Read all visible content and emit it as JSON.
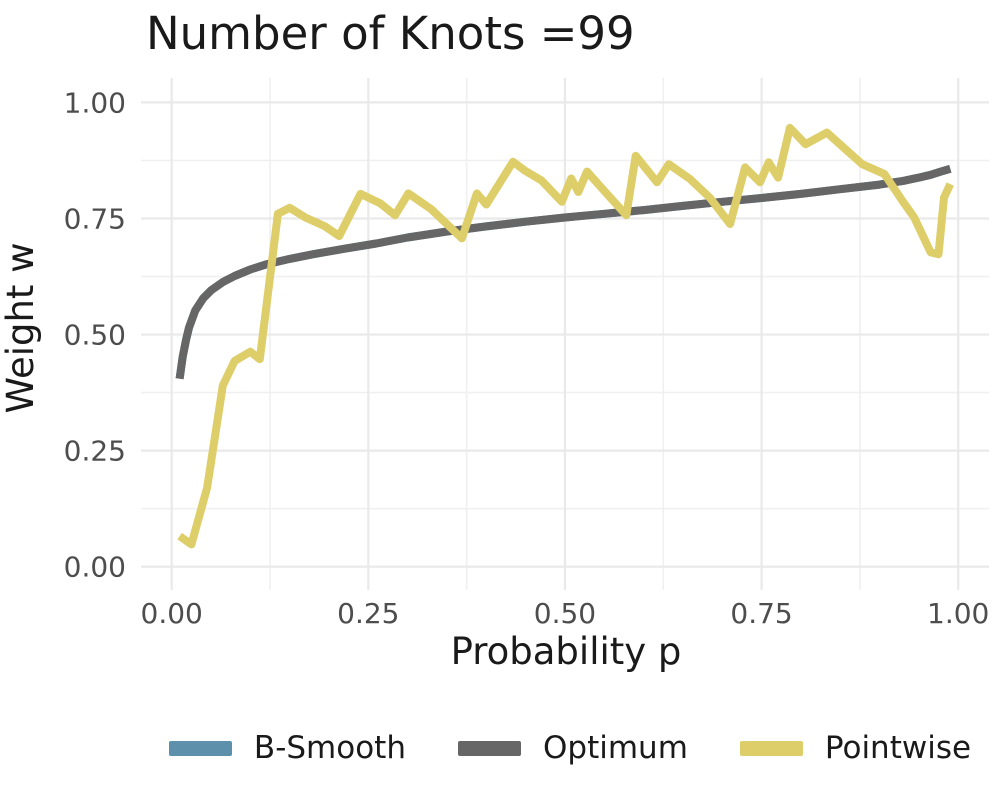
{
  "title": "Number of Knots =99",
  "colors": {
    "background": "#ffffff",
    "grid_major": "#e9e9e9",
    "grid_minor": "#f0f0f0",
    "title_text": "#1a1a1a",
    "axis_title_text": "#1a1a1a",
    "tick_text": "#4d4d4d",
    "legend_text": "#1a1a1a",
    "b_smooth": "#5c90ab",
    "optimum": "#666666",
    "pointwise": "#dece6a"
  },
  "legend": {
    "items": [
      {
        "label": "B-Smooth",
        "color": "#5c90ab"
      },
      {
        "label": "Optimum",
        "color": "#666666"
      },
      {
        "label": "Pointwise",
        "color": "#dece6a"
      }
    ]
  },
  "chart_data": {
    "type": "line",
    "title": "Number of Knots =99",
    "xlabel": "Probability p",
    "ylabel": "Weight w",
    "xlim": [
      -0.04,
      1.04
    ],
    "ylim": [
      -0.05,
      1.05
    ],
    "grid": "major and minor, light gray on white (ggplot theme_minimal style)",
    "legend_position": "bottom",
    "x_ticks": [
      {
        "value": 0.0,
        "label": "0.00"
      },
      {
        "value": 0.25,
        "label": "0.25"
      },
      {
        "value": 0.5,
        "label": "0.50"
      },
      {
        "value": 0.75,
        "label": "0.75"
      },
      {
        "value": 1.0,
        "label": "1.00"
      }
    ],
    "y_ticks": [
      {
        "value": 0.0,
        "label": "0.00"
      },
      {
        "value": 0.25,
        "label": "0.25"
      },
      {
        "value": 0.5,
        "label": "0.50"
      },
      {
        "value": 0.75,
        "label": "0.75"
      },
      {
        "value": 1.0,
        "label": "1.00"
      }
    ],
    "x_minor_ticks": [
      0.125,
      0.375,
      0.625,
      0.875
    ],
    "y_minor_ticks": [
      0.125,
      0.375,
      0.625,
      0.875
    ],
    "series": [
      {
        "name": "B-Smooth",
        "color": "#5c90ab",
        "note": "coincides with the Optimum curve and is hidden beneath it in the image",
        "points": [
          [
            0.01,
            0.405
          ],
          [
            0.014,
            0.452
          ],
          [
            0.018,
            0.487
          ],
          [
            0.022,
            0.515
          ],
          [
            0.03,
            0.552
          ],
          [
            0.04,
            0.578
          ],
          [
            0.05,
            0.595
          ],
          [
            0.065,
            0.613
          ],
          [
            0.08,
            0.626
          ],
          [
            0.1,
            0.64
          ],
          [
            0.12,
            0.651
          ],
          [
            0.15,
            0.663
          ],
          [
            0.18,
            0.673
          ],
          [
            0.22,
            0.685
          ],
          [
            0.26,
            0.696
          ],
          [
            0.3,
            0.709
          ],
          [
            0.35,
            0.722
          ],
          [
            0.4,
            0.733
          ],
          [
            0.45,
            0.743
          ],
          [
            0.5,
            0.752
          ],
          [
            0.55,
            0.76
          ],
          [
            0.6,
            0.768
          ],
          [
            0.65,
            0.777
          ],
          [
            0.7,
            0.786
          ],
          [
            0.75,
            0.794
          ],
          [
            0.8,
            0.803
          ],
          [
            0.85,
            0.813
          ],
          [
            0.9,
            0.823
          ],
          [
            0.93,
            0.831
          ],
          [
            0.95,
            0.838
          ],
          [
            0.965,
            0.844
          ],
          [
            0.978,
            0.851
          ],
          [
            0.99,
            0.857
          ]
        ]
      },
      {
        "name": "Optimum",
        "color": "#666666",
        "points": [
          [
            0.01,
            0.405
          ],
          [
            0.014,
            0.452
          ],
          [
            0.018,
            0.487
          ],
          [
            0.022,
            0.515
          ],
          [
            0.03,
            0.552
          ],
          [
            0.04,
            0.578
          ],
          [
            0.05,
            0.595
          ],
          [
            0.065,
            0.613
          ],
          [
            0.08,
            0.626
          ],
          [
            0.1,
            0.64
          ],
          [
            0.12,
            0.651
          ],
          [
            0.15,
            0.663
          ],
          [
            0.18,
            0.673
          ],
          [
            0.22,
            0.685
          ],
          [
            0.26,
            0.696
          ],
          [
            0.3,
            0.709
          ],
          [
            0.35,
            0.722
          ],
          [
            0.4,
            0.733
          ],
          [
            0.45,
            0.743
          ],
          [
            0.5,
            0.752
          ],
          [
            0.55,
            0.76
          ],
          [
            0.6,
            0.768
          ],
          [
            0.65,
            0.777
          ],
          [
            0.7,
            0.786
          ],
          [
            0.75,
            0.794
          ],
          [
            0.8,
            0.803
          ],
          [
            0.85,
            0.813
          ],
          [
            0.9,
            0.823
          ],
          [
            0.93,
            0.831
          ],
          [
            0.95,
            0.838
          ],
          [
            0.965,
            0.844
          ],
          [
            0.978,
            0.851
          ],
          [
            0.99,
            0.857
          ]
        ]
      },
      {
        "name": "Pointwise",
        "color": "#dece6a",
        "points": [
          [
            0.01,
            0.066
          ],
          [
            0.025,
            0.048
          ],
          [
            0.045,
            0.17
          ],
          [
            0.065,
            0.39
          ],
          [
            0.08,
            0.443
          ],
          [
            0.1,
            0.463
          ],
          [
            0.112,
            0.447
          ],
          [
            0.135,
            0.76
          ],
          [
            0.15,
            0.773
          ],
          [
            0.17,
            0.752
          ],
          [
            0.195,
            0.733
          ],
          [
            0.213,
            0.712
          ],
          [
            0.24,
            0.803
          ],
          [
            0.265,
            0.783
          ],
          [
            0.284,
            0.757
          ],
          [
            0.301,
            0.804
          ],
          [
            0.33,
            0.77
          ],
          [
            0.369,
            0.707
          ],
          [
            0.388,
            0.804
          ],
          [
            0.4,
            0.78
          ],
          [
            0.434,
            0.872
          ],
          [
            0.45,
            0.852
          ],
          [
            0.47,
            0.832
          ],
          [
            0.496,
            0.786
          ],
          [
            0.508,
            0.836
          ],
          [
            0.517,
            0.807
          ],
          [
            0.528,
            0.851
          ],
          [
            0.555,
            0.8
          ],
          [
            0.578,
            0.757
          ],
          [
            0.59,
            0.885
          ],
          [
            0.617,
            0.828
          ],
          [
            0.632,
            0.867
          ],
          [
            0.659,
            0.835
          ],
          [
            0.684,
            0.795
          ],
          [
            0.71,
            0.738
          ],
          [
            0.729,
            0.86
          ],
          [
            0.748,
            0.828
          ],
          [
            0.759,
            0.871
          ],
          [
            0.771,
            0.838
          ],
          [
            0.786,
            0.945
          ],
          [
            0.806,
            0.91
          ],
          [
            0.833,
            0.935
          ],
          [
            0.854,
            0.903
          ],
          [
            0.878,
            0.867
          ],
          [
            0.906,
            0.846
          ],
          [
            0.929,
            0.788
          ],
          [
            0.944,
            0.752
          ],
          [
            0.965,
            0.677
          ],
          [
            0.975,
            0.673
          ],
          [
            0.982,
            0.795
          ],
          [
            0.99,
            0.824
          ]
        ]
      }
    ]
  }
}
